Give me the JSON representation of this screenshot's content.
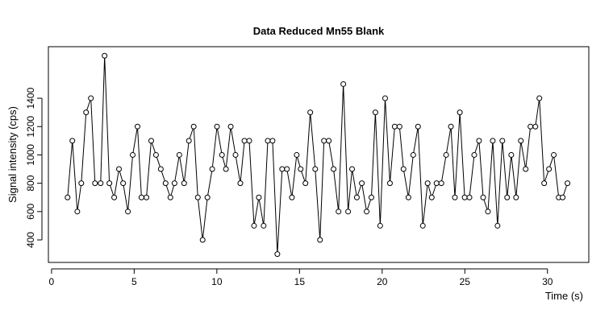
{
  "chart_data": {
    "type": "line",
    "title": "Data Reduced Mn55 Blank",
    "x_label": "Time (s)",
    "y_label": "Signal intensity (cps)",
    "color": "#000000",
    "x": [
      0.97,
      1.26,
      1.56,
      1.8,
      2.09,
      2.38,
      2.63,
      2.97,
      3.21,
      3.5,
      3.79,
      4.08,
      4.33,
      4.62,
      4.91,
      5.2,
      5.44,
      5.74,
      6.03,
      6.32,
      6.61,
      6.9,
      7.19,
      7.44,
      7.73,
      8.02,
      8.31,
      8.6,
      8.85,
      9.14,
      9.43,
      9.72,
      10.01,
      10.31,
      10.55,
      10.84,
      11.13,
      11.42,
      11.67,
      11.96,
      12.25,
      12.54,
      12.83,
      13.08,
      13.37,
      13.66,
      13.95,
      14.24,
      14.54,
      14.83,
      15.07,
      15.36,
      15.65,
      15.95,
      16.24,
      16.48,
      16.77,
      17.06,
      17.36,
      17.65,
      17.94,
      18.18,
      18.47,
      18.77,
      19.06,
      19.35,
      19.59,
      19.88,
      20.18,
      20.47,
      20.76,
      21.05,
      21.29,
      21.59,
      21.88,
      22.17,
      22.46,
      22.75,
      23.0,
      23.29,
      23.58,
      23.87,
      24.16,
      24.4,
      24.7,
      24.99,
      25.28,
      25.57,
      25.86,
      26.11,
      26.4,
      26.69,
      26.98,
      27.27,
      27.56,
      27.81,
      28.1,
      28.39,
      28.68,
      28.97,
      29.27,
      29.51,
      29.8,
      30.09,
      30.38,
      30.68,
      30.92,
      31.21
    ],
    "values": [
      700,
      1100,
      600,
      800,
      1300,
      1400,
      800,
      800,
      1700,
      800,
      700,
      900,
      800,
      600,
      1000,
      1200,
      700,
      700,
      1100,
      1000,
      900,
      800,
      700,
      800,
      1000,
      800,
      1100,
      1200,
      700,
      400,
      700,
      900,
      1200,
      1000,
      900,
      1200,
      1000,
      800,
      1100,
      1100,
      500,
      700,
      500,
      1100,
      1100,
      300,
      900,
      900,
      700,
      1000,
      900,
      800,
      1300,
      900,
      400,
      1100,
      1100,
      900,
      600,
      1500,
      600,
      900,
      700,
      800,
      600,
      700,
      1300,
      500,
      1400,
      800,
      1200,
      1200,
      900,
      700,
      1000,
      1200,
      500,
      800,
      700,
      800,
      800,
      1000,
      1200,
      700,
      1300,
      700,
      700,
      1000,
      1100,
      700,
      600,
      1100,
      500,
      1100,
      700,
      1000,
      700,
      1100,
      900,
      1200,
      1200,
      1400,
      800,
      900,
      1000,
      700,
      700,
      800
    ],
    "xlim": [
      -0.19,
      32.5
    ],
    "ylim": [
      241,
      1764
    ],
    "xticks": [
      0,
      5,
      10,
      15,
      20,
      25,
      30
    ],
    "yticks": [
      400,
      600,
      800,
      1000,
      1200,
      1400
    ]
  }
}
